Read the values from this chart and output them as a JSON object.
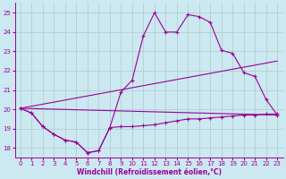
{
  "xlabel": "Windchill (Refroidissement éolien,°C)",
  "bg_color": "#cce8f0",
  "line_color": "#990099",
  "grid_color": "#aacccc",
  "x_ticks": [
    0,
    1,
    2,
    3,
    4,
    5,
    6,
    7,
    8,
    9,
    10,
    11,
    12,
    13,
    14,
    15,
    16,
    17,
    18,
    19,
    20,
    21,
    22,
    23
  ],
  "y_ticks": [
    18,
    19,
    20,
    21,
    22,
    23,
    24,
    25
  ],
  "ylim": [
    17.5,
    25.5
  ],
  "xlim": [
    -0.5,
    23.5
  ],
  "series1_x": [
    0,
    1,
    2,
    3,
    4,
    5,
    6,
    7,
    8,
    9,
    10,
    11,
    12,
    13,
    14,
    15,
    16,
    17,
    18,
    19,
    20,
    21,
    22,
    23
  ],
  "series1_y": [
    20.05,
    19.8,
    19.1,
    18.7,
    18.4,
    18.3,
    17.75,
    17.85,
    19.05,
    20.9,
    21.5,
    23.8,
    25.0,
    24.0,
    24.0,
    24.9,
    24.8,
    24.5,
    23.05,
    22.9,
    21.9,
    21.7,
    20.5,
    19.7
  ],
  "series2_x": [
    0,
    1,
    2,
    3,
    4,
    5,
    6,
    7,
    8,
    9,
    10,
    11,
    12,
    13,
    14,
    15,
    16,
    17,
    18,
    19,
    20,
    21,
    22,
    23
  ],
  "series2_y": [
    20.05,
    19.8,
    19.1,
    18.7,
    18.4,
    18.3,
    17.75,
    17.85,
    19.05,
    19.1,
    19.1,
    19.15,
    19.2,
    19.3,
    19.4,
    19.5,
    19.5,
    19.55,
    19.6,
    19.65,
    19.7,
    19.7,
    19.75,
    19.75
  ],
  "trend1_x": [
    0,
    23
  ],
  "trend1_y": [
    20.05,
    22.5
  ],
  "trend2_x": [
    0,
    23
  ],
  "trend2_y": [
    20.05,
    19.7
  ],
  "tick_fontsize": 5,
  "xlabel_fontsize": 5.5,
  "marker_size": 2.5,
  "line_width": 0.8
}
